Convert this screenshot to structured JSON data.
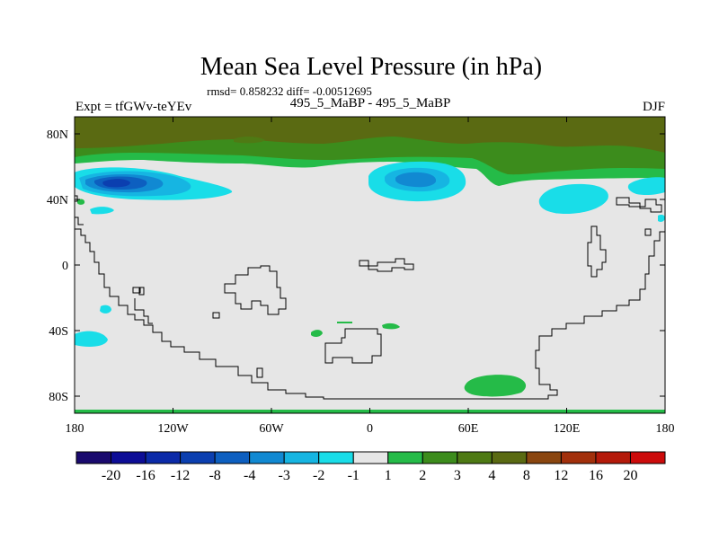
{
  "title": "Mean Sea Level Pressure (in hPa)",
  "stats": "rmsd= 0.858232 diff= -0.00512695",
  "experiment": "Expt = tfGWv-teYEv",
  "comparison": "495_5_MaBP - 495_5_MaBP",
  "season": "DJF",
  "axes": {
    "lon_ticks": [
      "180",
      "120W",
      "60W",
      "0",
      "60E",
      "120E",
      "180"
    ],
    "lat_ticks": [
      "80N",
      "40N",
      "0",
      "40S",
      "80S"
    ]
  },
  "colorbar": {
    "levels": [
      "-20",
      "-16",
      "-12",
      "-8",
      "-4",
      "-3",
      "-2",
      "-1",
      "1",
      "2",
      "3",
      "4",
      "8",
      "12",
      "16",
      "20"
    ],
    "colors": [
      "#1a0a6e",
      "#0d0d96",
      "#0b2aa8",
      "#0b3fb0",
      "#0d5fc0",
      "#1189d2",
      "#16b5e2",
      "#19dde8",
      "#e6e6e6",
      "#25bb48",
      "#3c8c1c",
      "#4e7a14",
      "#5a6a12",
      "#8a4610",
      "#a2300c",
      "#b41a0a",
      "#cc0b0b"
    ]
  },
  "colors": {
    "background": "#e6e6e6",
    "land_outline": "#000000"
  }
}
